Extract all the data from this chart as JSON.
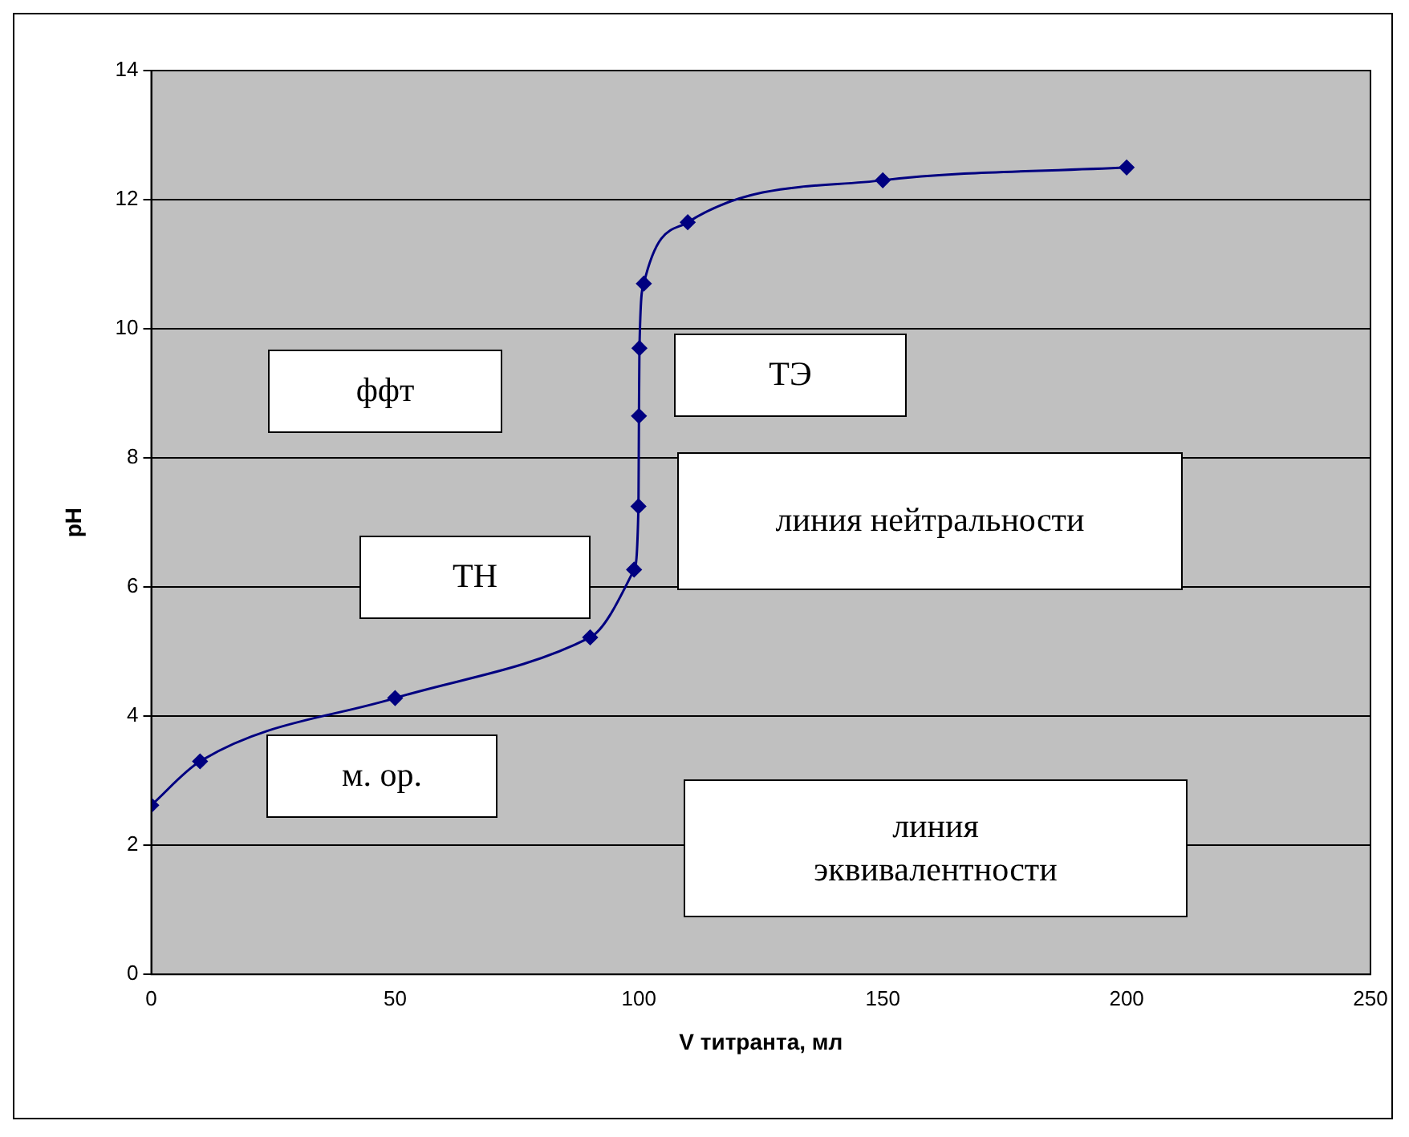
{
  "chart_data": {
    "type": "line",
    "xlabel": "V титранта, мл",
    "ylabel": "pH",
    "x": [
      0,
      10,
      50,
      90,
      99,
      99.9,
      100,
      100.1,
      101,
      110,
      150,
      200
    ],
    "series": [
      {
        "color": "#000080",
        "values": [
          2.62,
          3.3,
          4.28,
          5.22,
          6.27,
          7.25,
          8.65,
          9.7,
          10.7,
          11.65,
          12.3,
          12.5
        ]
      }
    ],
    "xlim": [
      0,
      250
    ],
    "xticks": [
      0,
      50,
      100,
      150,
      200,
      250
    ],
    "ylim": [
      0,
      14
    ],
    "yticks": [
      0,
      2,
      4,
      6,
      8,
      10,
      12,
      14
    ],
    "grid": "y",
    "legend": false,
    "marker": "diamond",
    "line_style": "solid",
    "annotations": [
      "ффт",
      "ТЭ",
      "линия нейтральности",
      "ТН",
      "м. ор.",
      "линия\nэквивалентности"
    ]
  }
}
